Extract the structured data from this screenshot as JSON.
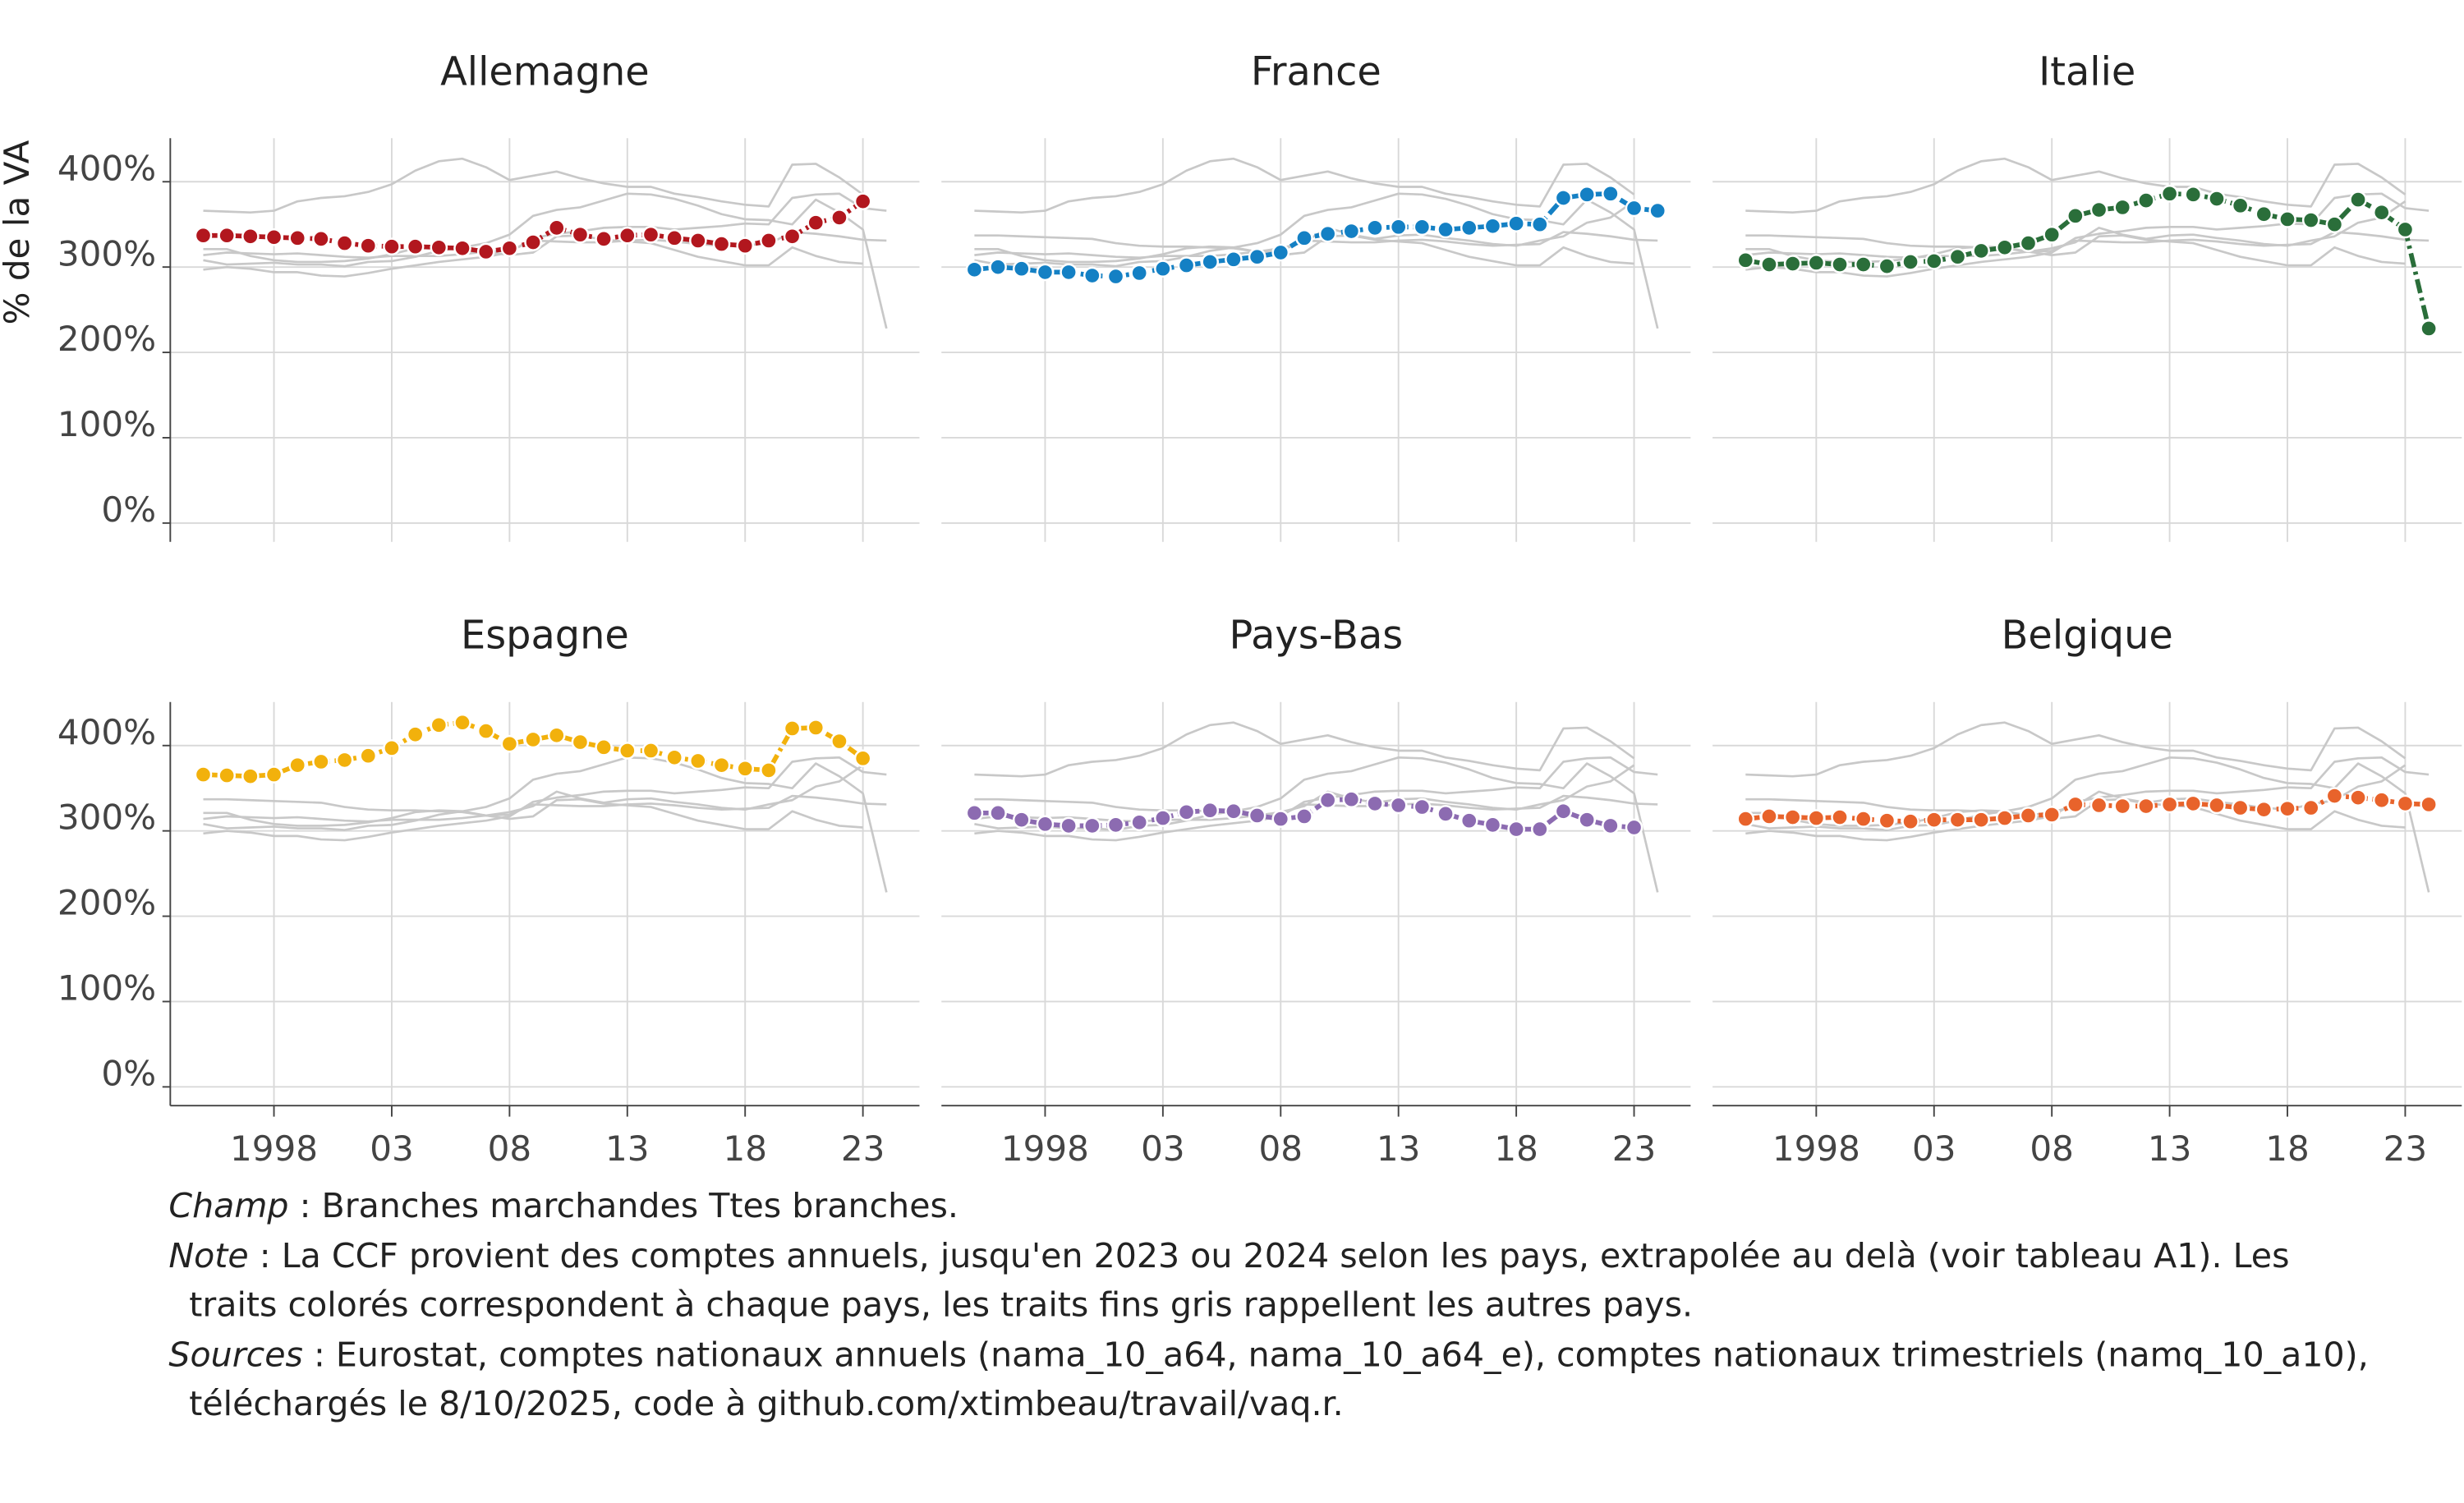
{
  "chart_data": {
    "type": "line",
    "ylabel": "% de la VA",
    "x": [
      1995,
      1996,
      1997,
      1998,
      1999,
      2000,
      2001,
      2002,
      2003,
      2004,
      2005,
      2006,
      2007,
      2008,
      2009,
      2010,
      2011,
      2012,
      2013,
      2014,
      2015,
      2016,
      2017,
      2018,
      2019,
      2020,
      2021,
      2022,
      2023,
      2024
    ],
    "xlim": [
      1993.6,
      2025.4
    ],
    "xticks": [
      1998,
      {
        "value": 2003,
        "label": "03"
      },
      {
        "value": 2008,
        "label": "08"
      },
      {
        "value": 2013,
        "label": "13"
      },
      {
        "value": 2018,
        "label": "18"
      },
      {
        "value": 2023,
        "label": "23"
      }
    ],
    "ylim": [
      -22,
      451
    ],
    "yticks": [
      {
        "value": 0,
        "label": "0%"
      },
      {
        "value": 100,
        "label": "100%"
      },
      {
        "value": 200,
        "label": "200%"
      },
      {
        "value": 300,
        "label": "300%"
      },
      {
        "value": 400,
        "label": "400%"
      }
    ],
    "grid": true,
    "series": [
      {
        "name": "Allemagne",
        "color": "#b2171e",
        "values": [
          337,
          337,
          336,
          335,
          334,
          333,
          328,
          325,
          324,
          324,
          323,
          322,
          318,
          322,
          329,
          346,
          338,
          333,
          337,
          338,
          334,
          331,
          327,
          325,
          331,
          336,
          352,
          358,
          377,
          null
        ]
      },
      {
        "name": "France",
        "color": "#1480c4",
        "values": [
          297,
          300,
          298,
          294,
          294,
          290,
          289,
          293,
          298,
          302,
          306,
          309,
          312,
          317,
          334,
          339,
          342,
          346,
          347,
          347,
          344,
          346,
          348,
          351,
          350,
          381,
          385,
          386,
          369,
          366
        ]
      },
      {
        "name": "Italie",
        "color": "#2a6e3a",
        "values": [
          308,
          303,
          304,
          305,
          303,
          303,
          301,
          306,
          307,
          312,
          319,
          323,
          328,
          338,
          360,
          367,
          370,
          378,
          386,
          385,
          380,
          372,
          362,
          356,
          355,
          350,
          379,
          364,
          344,
          228
        ]
      },
      {
        "name": "Espagne",
        "color": "#f2b10c",
        "values": [
          366,
          365,
          364,
          366,
          377,
          381,
          383,
          388,
          397,
          413,
          424,
          427,
          417,
          402,
          407,
          412,
          404,
          398,
          394,
          394,
          386,
          382,
          377,
          373,
          371,
          420,
          421,
          405,
          385,
          null
        ]
      },
      {
        "name": "Pays-Bas",
        "color": "#8c6bb1",
        "values": [
          321,
          321,
          313,
          308,
          306,
          306,
          307,
          310,
          315,
          322,
          324,
          323,
          318,
          314,
          317,
          336,
          337,
          332,
          330,
          328,
          320,
          312,
          307,
          302,
          302,
          323,
          313,
          306,
          304,
          null
        ]
      },
      {
        "name": "Belgique",
        "color": "#e8632b",
        "values": [
          314,
          317,
          316,
          315,
          316,
          314,
          312,
          311,
          313,
          313,
          313,
          315,
          318,
          319,
          331,
          330,
          329,
          329,
          331,
          332,
          330,
          327,
          325,
          326,
          327,
          341,
          339,
          336,
          332,
          331
        ]
      }
    ]
  },
  "notes": [
    {
      "label": "Champ",
      "lines": [
        " : Branches marchandes Ttes branches."
      ]
    },
    {
      "label": "Note",
      "lines": [
        " : La CCF provient des comptes annuels, jusqu'en 2023 ou 2024 selon les pays, extrapolée au delà (voir tableau A1). Les",
        "traits colorés correspondent à chaque pays, les traits fins gris rappellent les autres pays."
      ]
    },
    {
      "label": "Sources",
      "lines": [
        " : Eurostat, comptes nationaux annuels (nama_10_a64, nama_10_a64_e), comptes nationaux trimestriels (namq_10_a10),",
        "téléchargés le 8/10/2025, code à github.com/xtimbeau/travail/vaq.r."
      ]
    }
  ]
}
